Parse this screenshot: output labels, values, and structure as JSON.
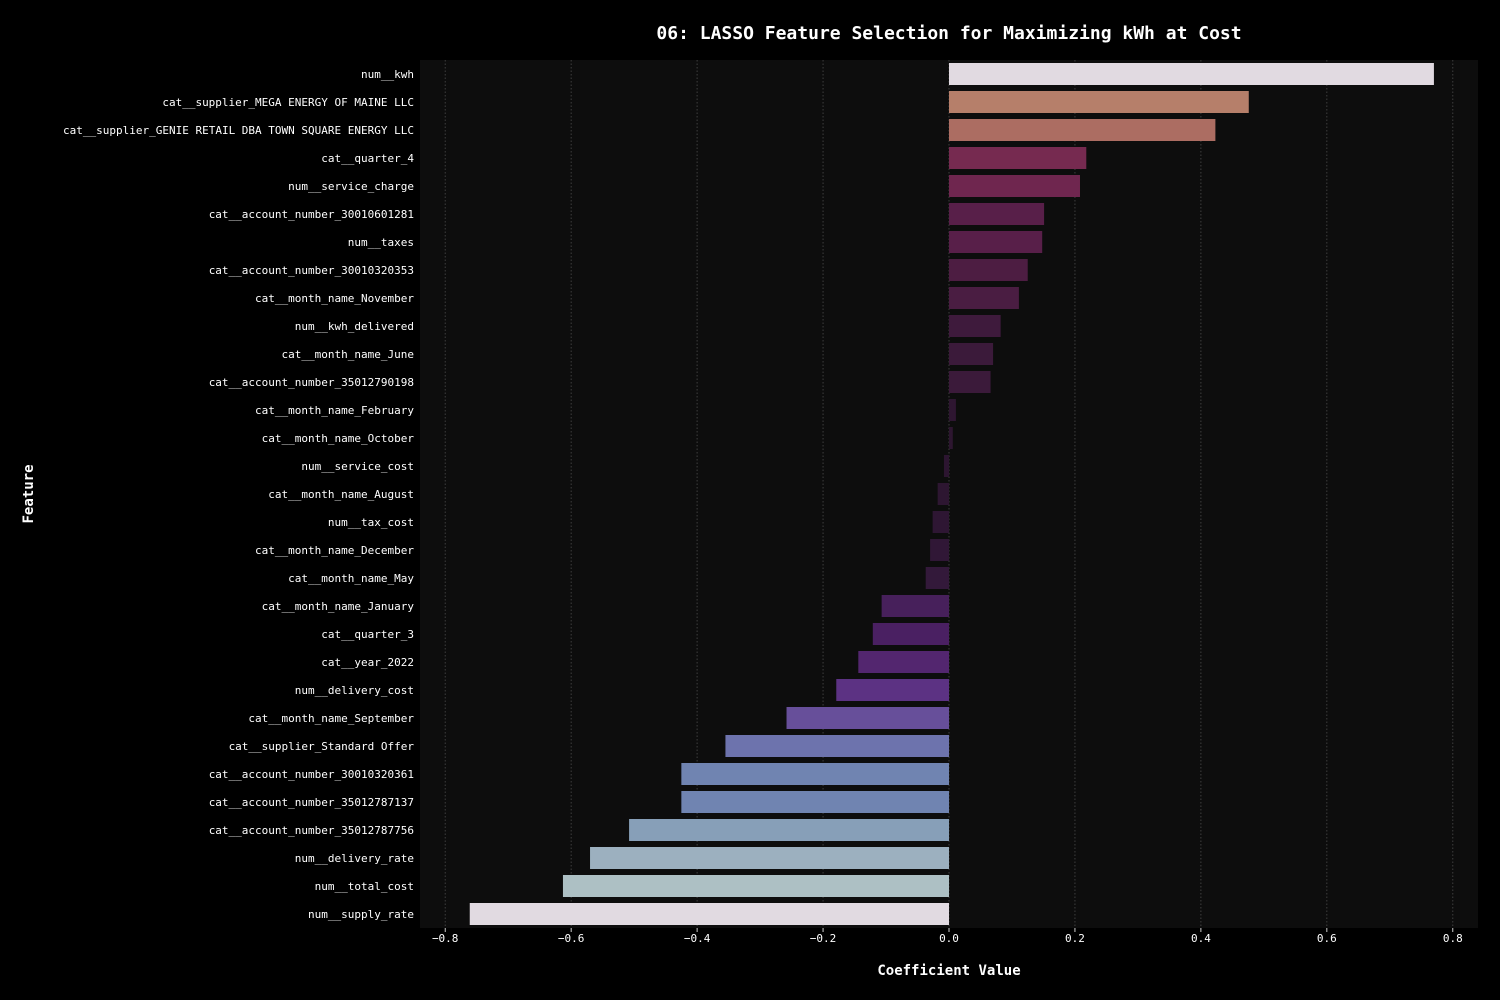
{
  "chart_data": {
    "type": "bar",
    "orientation": "horizontal",
    "title": "06: LASSO Feature Selection for Maximizing kWh at Cost",
    "xlabel": "Coefficient Value",
    "ylabel": "Feature",
    "xlim": [
      -0.84,
      0.84
    ],
    "xticks": [
      -0.8,
      -0.6,
      -0.4,
      -0.2,
      0.0,
      0.2,
      0.4,
      0.6,
      0.8
    ],
    "xtick_labels": [
      "−0.8",
      "−0.6",
      "−0.4",
      "−0.2",
      "0.0",
      "0.2",
      "0.4",
      "0.6",
      "0.8"
    ],
    "grid": "vertical dotted",
    "categories": [
      "num__kwh",
      "cat__supplier_MEGA ENERGY OF MAINE LLC",
      "cat__supplier_GENIE RETAIL DBA TOWN SQUARE ENERGY LLC",
      "cat__quarter_4",
      "num__service_charge",
      "cat__account_number_30010601281",
      "num__taxes",
      "cat__account_number_30010320353",
      "cat__month_name_November",
      "num__kwh_delivered",
      "cat__month_name_June",
      "cat__account_number_35012790198",
      "cat__month_name_February",
      "cat__month_name_October",
      "num__service_cost",
      "cat__month_name_August",
      "num__tax_cost",
      "cat__month_name_December",
      "cat__month_name_May",
      "cat__month_name_January",
      "cat__quarter_3",
      "cat__year_2022",
      "num__delivery_cost",
      "cat__month_name_September",
      "cat__supplier_Standard Offer",
      "cat__account_number_30010320361",
      "cat__account_number_35012787137",
      "cat__account_number_35012787756",
      "num__delivery_rate",
      "num__total_cost",
      "num__supply_rate"
    ],
    "values": [
      0.77,
      0.476,
      0.423,
      0.218,
      0.208,
      0.151,
      0.148,
      0.125,
      0.111,
      0.082,
      0.07,
      0.066,
      0.011,
      0.006,
      -0.008,
      -0.018,
      -0.026,
      -0.03,
      -0.037,
      -0.107,
      -0.121,
      -0.144,
      -0.179,
      -0.258,
      -0.355,
      -0.425,
      -0.425,
      -0.508,
      -0.57,
      -0.613,
      -0.761
    ],
    "colors": [
      "#e1dae1",
      "#b67f6a",
      "#ac6d62",
      "#762a50",
      "#6f264f",
      "#581f49",
      "#581f49",
      "#4d1d42",
      "#4a1d42",
      "#3e1a3c",
      "#3b1a3a",
      "#3b1a3a",
      "#2e1631",
      "#2d1630",
      "#2c1530",
      "#2d1631",
      "#2e1633",
      "#301736",
      "#33193a",
      "#47205b",
      "#4a2062",
      "#53266f",
      "#5c3283",
      "#674f9a",
      "#6d73ad",
      "#7084b1",
      "#7084b1",
      "#879fb8",
      "#9cb0bf",
      "#adc0c4",
      "#e1dae1"
    ],
    "background": "#0d0d0d"
  }
}
